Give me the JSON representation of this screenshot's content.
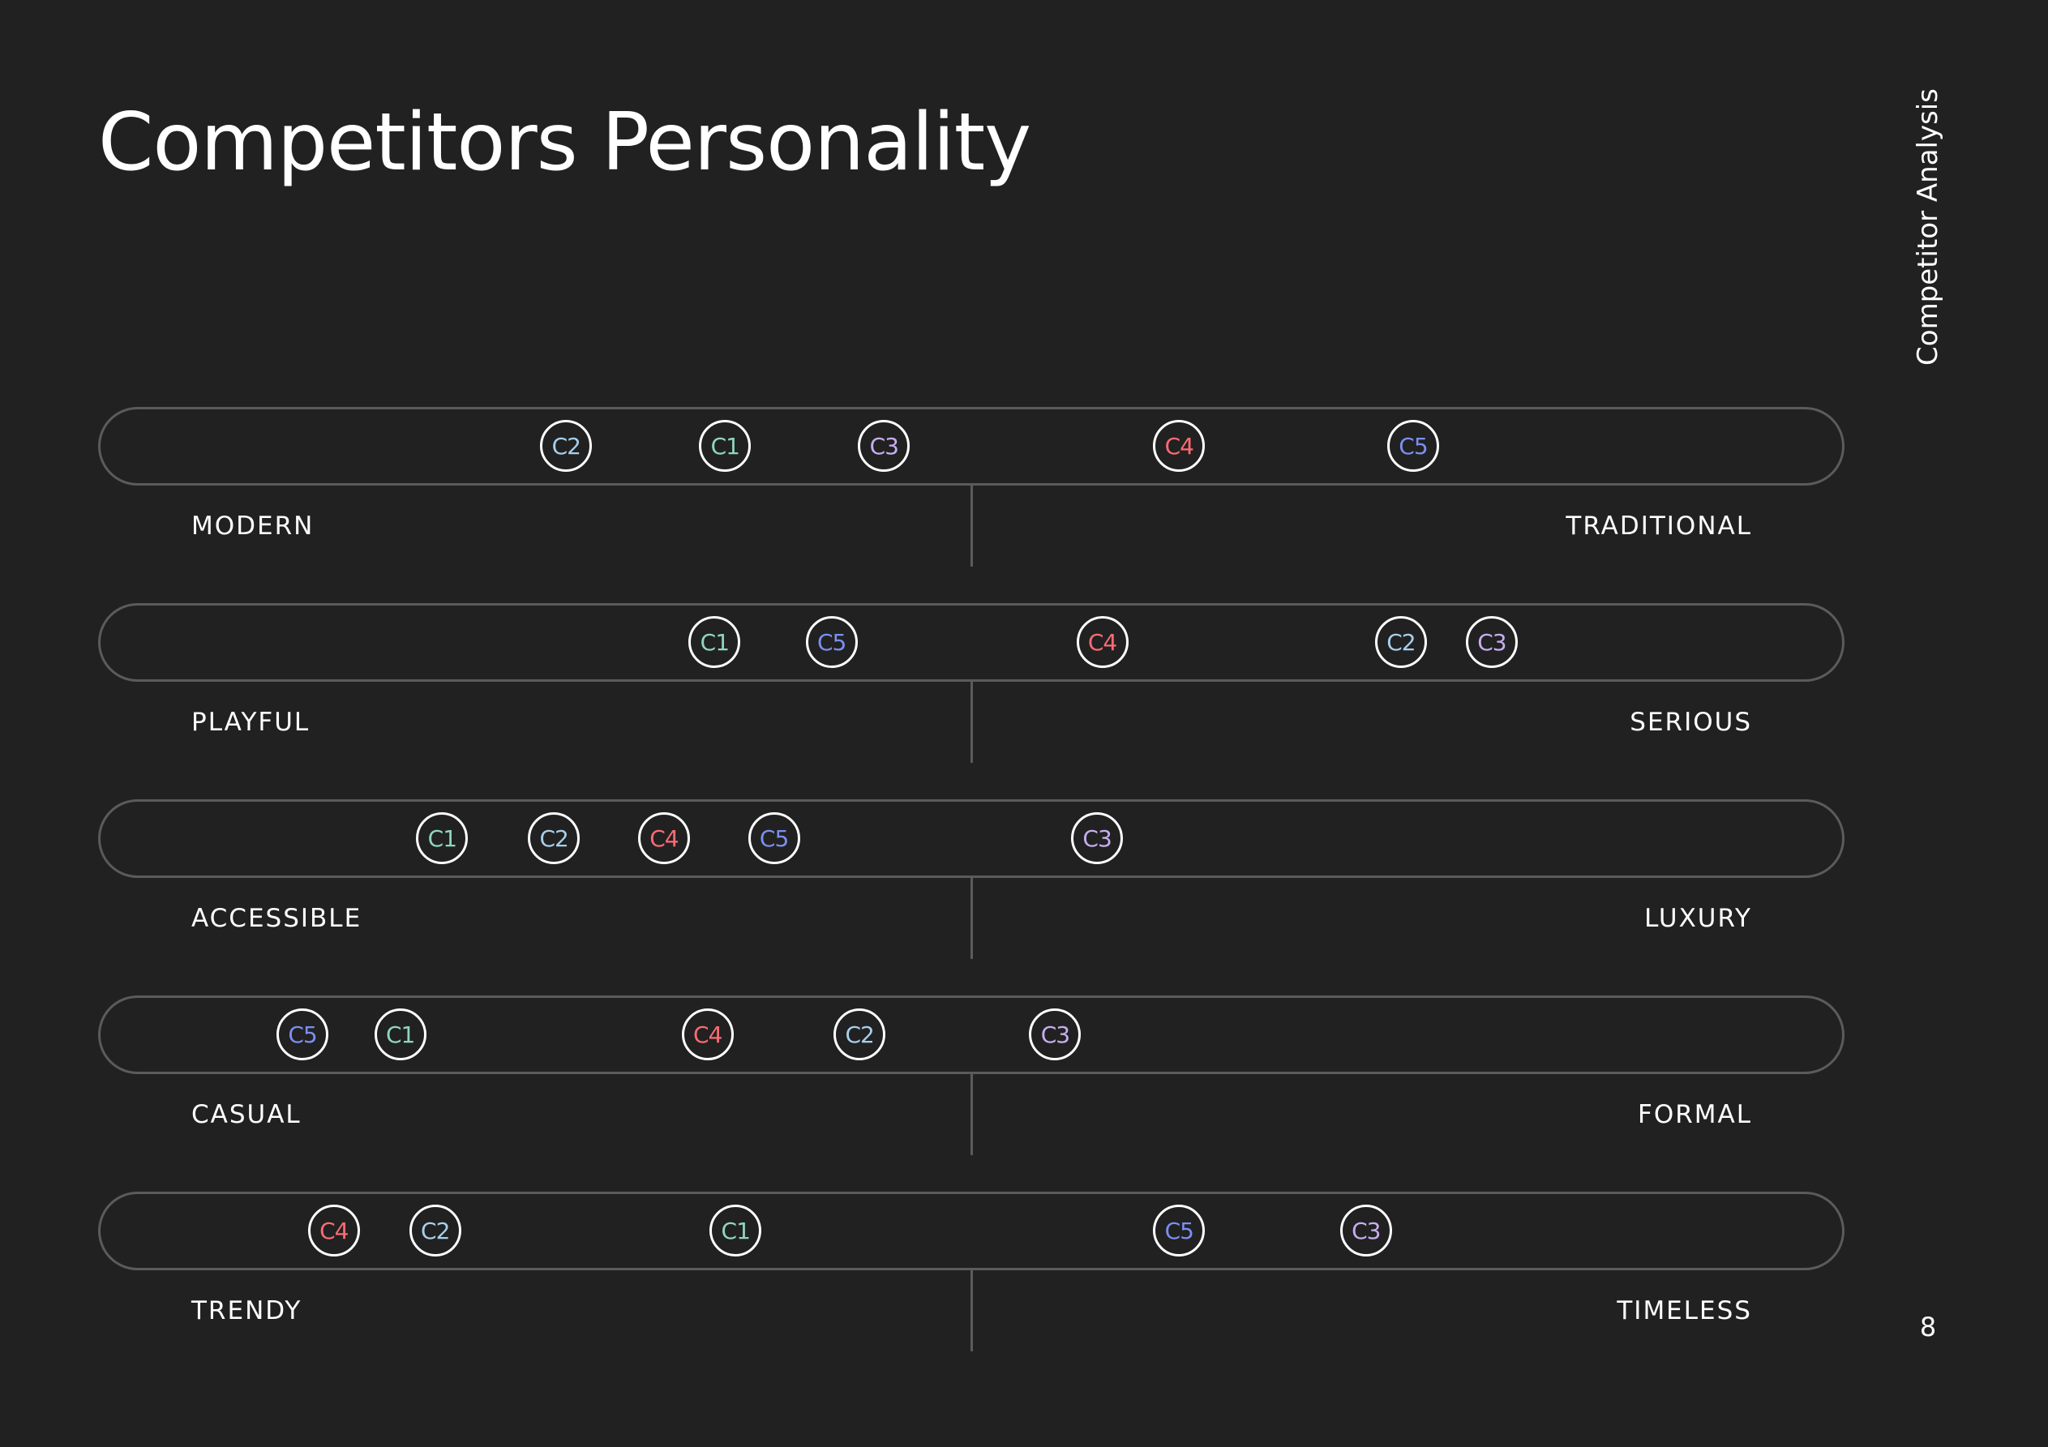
{
  "title": "Competitors Personality",
  "side_label": "Competitor Analysis",
  "page_number": "8",
  "competitor_colors": {
    "C1": "#8fd6c0",
    "C2": "#a8cfea",
    "C3": "#c6aef0",
    "C4": "#ff6b74",
    "C5": "#7b8ff2"
  },
  "scale_range": [
    0,
    100
  ],
  "scales": [
    {
      "left": "MODERN",
      "right": "TRADITIONAL",
      "markers": [
        {
          "label": "C2",
          "value": 26.8
        },
        {
          "label": "C1",
          "value": 35.9
        },
        {
          "label": "C3",
          "value": 45.0
        },
        {
          "label": "C4",
          "value": 61.9
        },
        {
          "label": "C5",
          "value": 75.3
        }
      ]
    },
    {
      "left": "PLAYFUL",
      "right": "SERIOUS",
      "markers": [
        {
          "label": "C1",
          "value": 35.3
        },
        {
          "label": "C5",
          "value": 42.0
        },
        {
          "label": "C4",
          "value": 57.5
        },
        {
          "label": "C2",
          "value": 74.6
        },
        {
          "label": "C3",
          "value": 79.8
        }
      ]
    },
    {
      "left": "ACCESSIBLE",
      "right": "LUXURY",
      "markers": [
        {
          "label": "C1",
          "value": 19.7
        },
        {
          "label": "C2",
          "value": 26.1
        },
        {
          "label": "C4",
          "value": 32.4
        },
        {
          "label": "C5",
          "value": 38.7
        },
        {
          "label": "C3",
          "value": 57.2
        }
      ]
    },
    {
      "left": "CASUAL",
      "right": "FORMAL",
      "markers": [
        {
          "label": "C5",
          "value": 11.7
        },
        {
          "label": "C1",
          "value": 17.3
        },
        {
          "label": "C4",
          "value": 34.9
        },
        {
          "label": "C2",
          "value": 43.6
        },
        {
          "label": "C3",
          "value": 54.8
        }
      ]
    },
    {
      "left": "TRENDY",
      "right": "TIMELESS",
      "markers": [
        {
          "label": "C4",
          "value": 13.5
        },
        {
          "label": "C2",
          "value": 19.3
        },
        {
          "label": "C1",
          "value": 36.5
        },
        {
          "label": "C5",
          "value": 61.9
        },
        {
          "label": "C3",
          "value": 72.6
        }
      ]
    }
  ]
}
